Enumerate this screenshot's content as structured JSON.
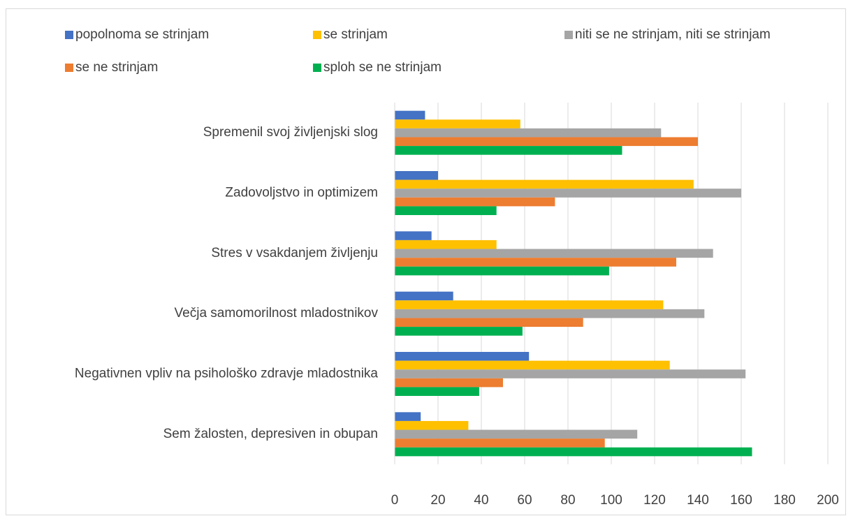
{
  "chart_data": {
    "type": "bar",
    "orientation": "horizontal",
    "categories": [
      "Spremenil svoj življenjski slog",
      "Zadovoljstvo in optimizem",
      "Stres v vsakdanjem življenju",
      "Večja samomorilnost mladostnikov",
      "Negativnen vpliv na psihološko zdravje mladostnika",
      "Sem žalosten, depresiven in obupan"
    ],
    "series": [
      {
        "name": "popolnoma se strinjam",
        "color": "#4472c4",
        "values": [
          14,
          20,
          17,
          27,
          62,
          12
        ]
      },
      {
        "name": "se strinjam",
        "color": "#ffc000",
        "values": [
          58,
          138,
          47,
          124,
          127,
          34
        ]
      },
      {
        "name": "niti se ne strinjam, niti se strinjam",
        "color": "#a5a5a5",
        "values": [
          123,
          160,
          147,
          143,
          162,
          112
        ]
      },
      {
        "name": "se ne strinjam",
        "color": "#ed7d31",
        "values": [
          140,
          74,
          130,
          87,
          50,
          97
        ]
      },
      {
        "name": "sploh se ne strinjam",
        "color": "#00b050",
        "values": [
          105,
          47,
          99,
          59,
          39,
          165
        ]
      }
    ],
    "xlim": [
      0,
      200
    ],
    "xticks": [
      0,
      20,
      40,
      60,
      80,
      100,
      120,
      140,
      160,
      180,
      200
    ],
    "grid": true,
    "legend": "top"
  }
}
